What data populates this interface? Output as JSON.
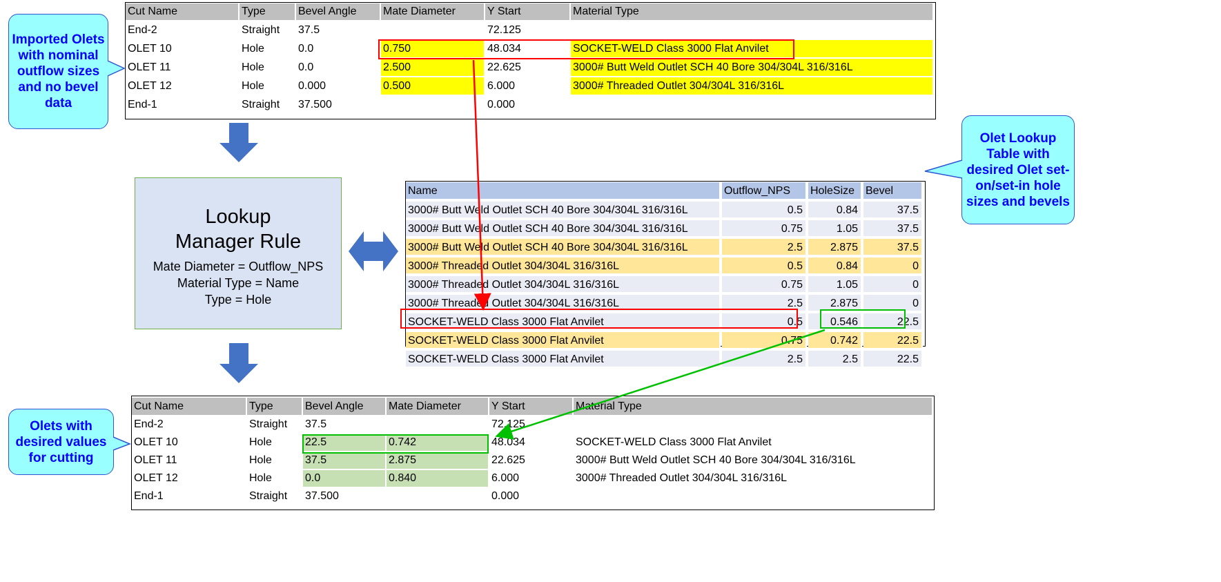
{
  "imported_table": {
    "columns": [
      "Cut Name",
      "Type",
      "Bevel Angle",
      "Mate Diameter",
      "Y Start",
      "Material Type"
    ],
    "rows": [
      [
        "End-2",
        "Straight",
        "37.5",
        "",
        "72.125",
        ""
      ],
      [
        "OLET 10",
        "Hole",
        "0.0",
        "0.750",
        "48.034",
        "SOCKET-WELD  Class 3000 Flat Anvilet"
      ],
      [
        "OLET 11",
        "Hole",
        "0.0",
        "2.500",
        "22.625",
        "3000# Butt Weld Outlet SCH 40 Bore 304/304L 316/316L"
      ],
      [
        "OLET 12",
        "Hole",
        "0.000",
        "0.500",
        "6.000",
        "3000# Threaded Outlet 304/304L 316/316L"
      ],
      [
        "End-1",
        "Straight",
        "37.500",
        "",
        "0.000",
        ""
      ]
    ]
  },
  "callouts": {
    "imported": "Imported Olets with nominal outflow sizes and no bevel data",
    "lookup": "Olet Lookup Table with desired Olet set-on/set-in hole sizes and bevels",
    "result": "Olets with desired values for cutting"
  },
  "rule": {
    "title": "Lookup Manager Rule",
    "lines": [
      "Mate Diameter = Outflow_NPS",
      "Material Type = Name",
      "Type = Hole"
    ]
  },
  "lookup_table": {
    "columns": [
      "Name",
      "Outflow_NPS",
      "HoleSize",
      "Bevel"
    ],
    "rows": [
      [
        "3000# Butt Weld Outlet SCH 40 Bore 304/304L 316/316L",
        "0.5",
        "0.84",
        "37.5"
      ],
      [
        "3000# Butt Weld Outlet SCH 40 Bore 304/304L 316/316L",
        "0.75",
        "1.05",
        "37.5"
      ],
      [
        "3000# Butt Weld Outlet SCH 40 Bore 304/304L 316/316L",
        "2.5",
        "2.875",
        "37.5"
      ],
      [
        "3000# Threaded Outlet 304/304L 316/316L",
        "0.5",
        "0.84",
        "0"
      ],
      [
        "3000# Threaded Outlet 304/304L 316/316L",
        "0.75",
        "1.05",
        "0"
      ],
      [
        "3000# Threaded Outlet 304/304L 316/316L",
        "2.5",
        "2.875",
        "0"
      ],
      [
        "SOCKET-WELD  Class 3000 Flat Anvilet",
        "0.5",
        "0.546",
        "22.5"
      ],
      [
        "SOCKET-WELD  Class 3000 Flat Anvilet",
        "0.75",
        "0.742",
        "22.5"
      ],
      [
        "SOCKET-WELD  Class 3000 Flat Anvilet",
        "2.5",
        "2.5",
        "22.5"
      ]
    ],
    "highlighted_rows": [
      2,
      3,
      7
    ]
  },
  "result_table": {
    "columns": [
      "Cut Name",
      "Type",
      "Bevel Angle",
      "Mate Diameter",
      "Y Start",
      "Material Type"
    ],
    "rows": [
      [
        "End-2",
        "Straight",
        "37.5",
        "",
        "72.125",
        ""
      ],
      [
        "OLET 10",
        "Hole",
        "22.5",
        "0.742",
        "48.034",
        "SOCKET-WELD  Class 3000 Flat Anvilet"
      ],
      [
        "OLET 11",
        "Hole",
        "37.5",
        "2.875",
        "22.625",
        "3000# Butt Weld Outlet SCH 40 Bore 304/304L 316/316L"
      ],
      [
        "OLET 12",
        "Hole",
        "0.0",
        "0.840",
        "6.000",
        "3000# Threaded Outlet 304/304L 316/316L"
      ],
      [
        "End-1",
        "Straight",
        "37.500",
        "",
        "0.000",
        ""
      ]
    ]
  },
  "colors": {
    "highlight_yellow": "#ffff00",
    "lookup_highlight": "#ffe699",
    "result_green": "#c6e0b4",
    "arrow_blue": "#4472c4",
    "red_box": "#ff0000",
    "green_box": "#00c000"
  }
}
